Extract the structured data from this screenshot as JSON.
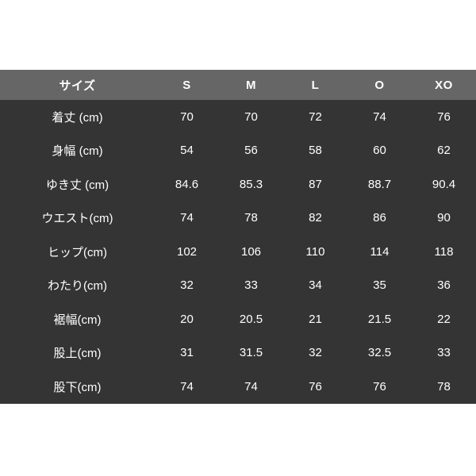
{
  "colors": {
    "page_bg": "#ffffff",
    "header_bg": "#666666",
    "body_bg": "#343434",
    "text": "#ffffff"
  },
  "table": {
    "columns": [
      "サイズ",
      "S",
      "M",
      "L",
      "O",
      "XO"
    ],
    "rows": [
      {
        "label": "着丈 (cm)",
        "values": [
          "70",
          "70",
          "72",
          "74",
          "76"
        ]
      },
      {
        "label": "身幅 (cm)",
        "values": [
          "54",
          "56",
          "58",
          "60",
          "62"
        ]
      },
      {
        "label": "ゆき丈 (cm)",
        "values": [
          "84.6",
          "85.3",
          "87",
          "88.7",
          "90.4"
        ]
      },
      {
        "label": "ウエスト(cm)",
        "values": [
          "74",
          "78",
          "82",
          "86",
          "90"
        ]
      },
      {
        "label": "ヒップ(cm)",
        "values": [
          "102",
          "106",
          "110",
          "114",
          "118"
        ]
      },
      {
        "label": "わたり(cm)",
        "values": [
          "32",
          "33",
          "34",
          "35",
          "36"
        ]
      },
      {
        "label": "裾幅(cm)",
        "values": [
          "20",
          "20.5",
          "21",
          "21.5",
          "22"
        ]
      },
      {
        "label": "股上(cm)",
        "values": [
          "31",
          "31.5",
          "32",
          "32.5",
          "33"
        ]
      },
      {
        "label": "股下(cm)",
        "values": [
          "74",
          "74",
          "76",
          "76",
          "78"
        ]
      }
    ]
  },
  "chart_data": {
    "type": "table",
    "title": "",
    "columns": [
      "サイズ",
      "S",
      "M",
      "L",
      "O",
      "XO"
    ],
    "rows": [
      {
        "label": "着丈 (cm)",
        "values": [
          70,
          70,
          72,
          74,
          76
        ]
      },
      {
        "label": "身幅 (cm)",
        "values": [
          54,
          56,
          58,
          60,
          62
        ]
      },
      {
        "label": "ゆき丈 (cm)",
        "values": [
          84.6,
          85.3,
          87,
          88.7,
          90.4
        ]
      },
      {
        "label": "ウエスト(cm)",
        "values": [
          74,
          78,
          82,
          86,
          90
        ]
      },
      {
        "label": "ヒップ(cm)",
        "values": [
          102,
          106,
          110,
          114,
          118
        ]
      },
      {
        "label": "わたり(cm)",
        "values": [
          32,
          33,
          34,
          35,
          36
        ]
      },
      {
        "label": "裾幅(cm)",
        "values": [
          20,
          20.5,
          21,
          21.5,
          22
        ]
      },
      {
        "label": "股上(cm)",
        "values": [
          31,
          31.5,
          32,
          32.5,
          33
        ]
      },
      {
        "label": "股下(cm)",
        "values": [
          74,
          74,
          76,
          76,
          78
        ]
      }
    ],
    "layout": {
      "header_background": "#666666",
      "body_background": "#343434",
      "text_color": "#ffffff",
      "grid": false
    }
  }
}
